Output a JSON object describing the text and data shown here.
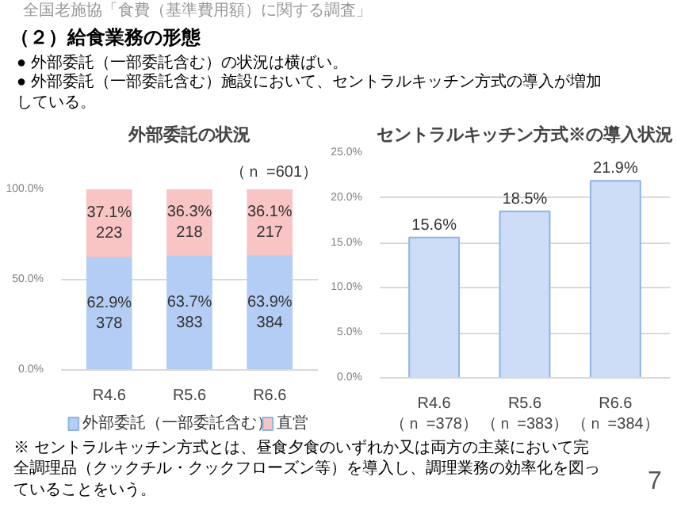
{
  "chart_data": [
    {
      "type": "bar",
      "title": "外部委託の状況",
      "stacked": true,
      "categories": [
        "R4.6",
        "R5.6",
        "R6.6"
      ],
      "ylim": [
        0,
        100
      ],
      "yticks": [
        {
          "value": 0,
          "label": "0.0%"
        },
        {
          "value": 50,
          "label": "50.0%"
        },
        {
          "value": 100,
          "label": "100.0%"
        }
      ],
      "grid": "y",
      "legend": "bottom",
      "series": [
        {
          "name": "外部委託（一部委託含む）",
          "color": "#b4cdf5",
          "values": [
            62.9,
            63.7,
            63.9
          ],
          "value_labels": [
            "62.9%\n378",
            "63.7%\n383",
            "63.9%\n384"
          ]
        },
        {
          "name": "直営",
          "color": "#f8c4c4",
          "values": [
            37.1,
            36.3,
            36.1
          ],
          "value_labels": [
            "37.1%\n223",
            "36.3%\n218",
            "36.1%\n217"
          ]
        }
      ],
      "annotations": [
        "全国老施協「食費（基準費用額）に関する調査」",
        "（２）給食業務の形態",
        "●  外部委託（一部委託含む）の状況は横ばい。",
        "●  外部委託（一部委託含む）施設において、セントラルキッチン方式の導入が増加している。",
        "（ｎ =601）"
      ]
    },
    {
      "type": "bar",
      "title": "セントラルキッチン方式※の導入状況",
      "categories": [
        "R4.6\n（ｎ =378）",
        "R5.6\n（ｎ =383）",
        "R6.6\n（ｎ =384）"
      ],
      "ylim": [
        0,
        25
      ],
      "yticks": [
        {
          "value": 0,
          "label": "0.0%"
        },
        {
          "value": 5,
          "label": "5.0%"
        },
        {
          "value": 10,
          "label": "10.0%"
        },
        {
          "value": 15,
          "label": "15.0%"
        },
        {
          "value": 20,
          "label": "20.0%"
        },
        {
          "value": 25,
          "label": "25.0%"
        }
      ],
      "grid": "y",
      "series": [
        {
          "color": "#cddcf7",
          "values": [
            15.6,
            18.5,
            21.9
          ],
          "value_labels": [
            "15.6%",
            "18.5%",
            "21.9%"
          ]
        }
      ],
      "annotations": [
        "※ セントラルキッチン方式とは、昼食夕食のいずれか又は両方の主菜において完全調理品（クックチル・クックフローズン等）を導入し、調理業務の効率化を図っていることをいう。",
        "7"
      ]
    }
  ]
}
